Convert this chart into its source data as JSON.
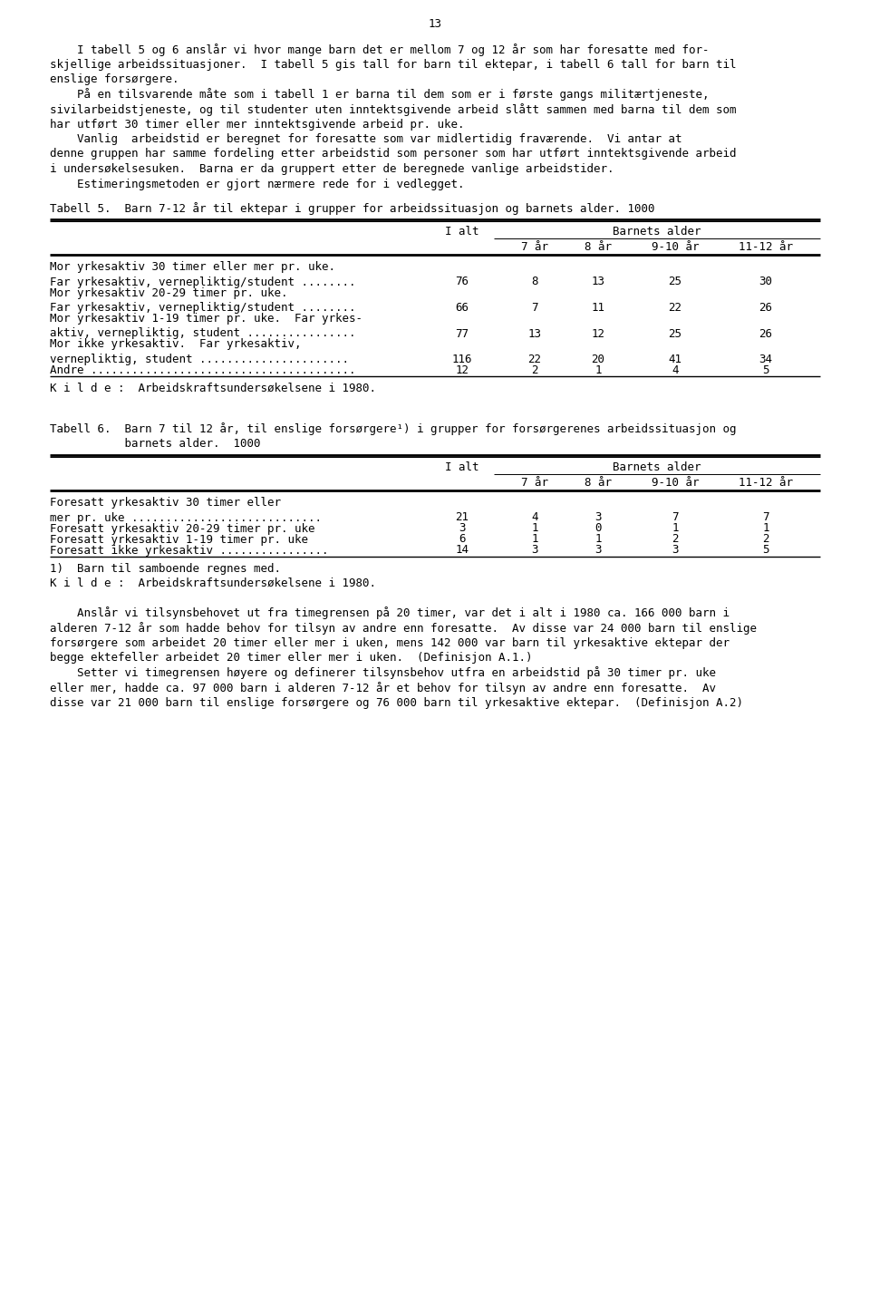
{
  "page_number": "13",
  "background_color": "#ffffff",
  "text_color": "#000000",
  "paragraphs": [
    "    I tabell 5 og 6 anslår vi hvor mange barn det er mellom 7 og 12 år som har foresatte med for-",
    "skjellige arbeidssituasjoner.  I tabell 5 gis tall for barn til ektepar, i tabell 6 tall for barn til",
    "enslige forsørgere.",
    "    På en tilsvarende måte som i tabell 1 er barna til dem som er i første gangs militærtjeneste,",
    "sivilarbeidstjeneste, og til studenter uten inntektsgivende arbeid slått sammen med barna til dem som",
    "har utført 30 timer eller mer inntektsgivende arbeid pr. uke.",
    "    Vanlig  arbeidstid er beregnet for foresatte som var midlertidig fraværende.  Vi antar at",
    "denne gruppen har samme fordeling etter arbeidstid som personer som har utført inntektsgivende arbeid",
    "i undersøkelsesuken.  Barna er da gruppert etter de beregnede vanlige arbeidstider.",
    "    Estimeringsmetoden er gjort nærmere rede for i vedlegget."
  ],
  "table5_title": "Tabell 5.  Barn 7-12 år til ektepar i grupper for arbeidssituasjon og barnets alder. 1000",
  "table5_header_ialt": "I alt",
  "table5_header_barnets": "Barnets alder",
  "table5_header_7": "7 år",
  "table5_header_8": "8 år",
  "table5_header_910": "9-10 år",
  "table5_header_1112": "11-12 år",
  "table5_rows": [
    {
      "label_line1": "Mor yrkesaktiv 30 timer eller mer pr. uke.",
      "label_line2": "Far yrkesaktiv, vernepliktig/student ........",
      "ialt": "76",
      "v7": "8",
      "v8": "13",
      "v910": "25",
      "v1112": "30"
    },
    {
      "label_line1": "Mor yrkesaktiv 20-29 timer pr. uke.",
      "label_line2": "Far yrkesaktiv, vernepliktig/student ........",
      "ialt": "66",
      "v7": "7",
      "v8": "11",
      "v910": "22",
      "v1112": "26"
    },
    {
      "label_line1": "Mor yrkesaktiv 1-19 timer pr. uke.  Far yrkes-",
      "label_line2": "aktiv, vernepliktig, student ................",
      "ialt": "77",
      "v7": "13",
      "v8": "12",
      "v910": "25",
      "v1112": "26"
    },
    {
      "label_line1": "Mor ikke yrkesaktiv.  Far yrkesaktiv,",
      "label_line2": "vernepliktig, student ......................",
      "ialt": "116",
      "v7": "22",
      "v8": "20",
      "v910": "41",
      "v1112": "34"
    },
    {
      "label_line1": "Andre .......................................",
      "label_line2": "",
      "ialt": "12",
      "v7": "2",
      "v8": "1",
      "v910": "4",
      "v1112": "5"
    }
  ],
  "table5_kilde": "K i l d e :  Arbeidskraftsundersøkelsene i 1980.",
  "table6_title_line1": "Tabell 6.  Barn 7 til 12 år, til enslige forsørgere¹) i grupper for forsørgerenes arbeidssituasjon og",
  "table6_title_line2": "           barnets alder.  1000",
  "table6_header_ialt": "I alt",
  "table6_header_barnets": "Barnets alder",
  "table6_header_7": "7 år",
  "table6_header_8": "8 år",
  "table6_header_910": "9-10 år",
  "table6_header_1112": "11-12 år",
  "table6_rows": [
    {
      "label_line1": "Foresatt yrkesaktiv 30 timer eller",
      "label_line2": "mer pr. uke ............................",
      "ialt": "21",
      "v7": "4",
      "v8": "3",
      "v910": "7",
      "v1112": "7"
    },
    {
      "label_line1": "Foresatt yrkesaktiv 20-29 timer pr. uke",
      "label_line2": "",
      "ialt": "3",
      "v7": "1",
      "v8": "0",
      "v910": "1",
      "v1112": "1"
    },
    {
      "label_line1": "Foresatt yrkesaktiv 1-19 timer pr. uke",
      "label_line2": "",
      "ialt": "6",
      "v7": "1",
      "v8": "1",
      "v910": "2",
      "v1112": "2"
    },
    {
      "label_line1": "Foresatt ikke yrkesaktiv ................",
      "label_line2": "",
      "ialt": "14",
      "v7": "3",
      "v8": "3",
      "v910": "3",
      "v1112": "5"
    }
  ],
  "table6_footnote": "1)  Barn til samboende regnes med.",
  "table6_kilde": "K i l d e :  Arbeidskraftsundersøkelsene i 1980.",
  "closing_paragraphs": [
    "    Anslår vi tilsynsbehovet ut fra timegrensen på 20 timer, var det i alt i 1980 ca. 166 000 barn i",
    "alderen 7-12 år som hadde behov for tilsyn av andre enn foresatte.  Av disse var 24 000 barn til enslige",
    "forsørgere som arbeidet 20 timer eller mer i uken, mens 142 000 var barn til yrkesaktive ektepar der",
    "begge ektefeller arbeidet 20 timer eller mer i uken.  (Definisjon A.1.)",
    "    Setter vi timegrensen høyere og definerer tilsynsbehov utfra en arbeidstid på 30 timer pr. uke",
    "eller mer, hadde ca. 97 000 barn i alderen 7-12 år et behov for tilsyn av andre enn foresatte.  Av",
    "disse var 21 000 barn til enslige forsørgere og 76 000 barn til yrkesaktive ektepar.  (Definisjon A.2)"
  ]
}
